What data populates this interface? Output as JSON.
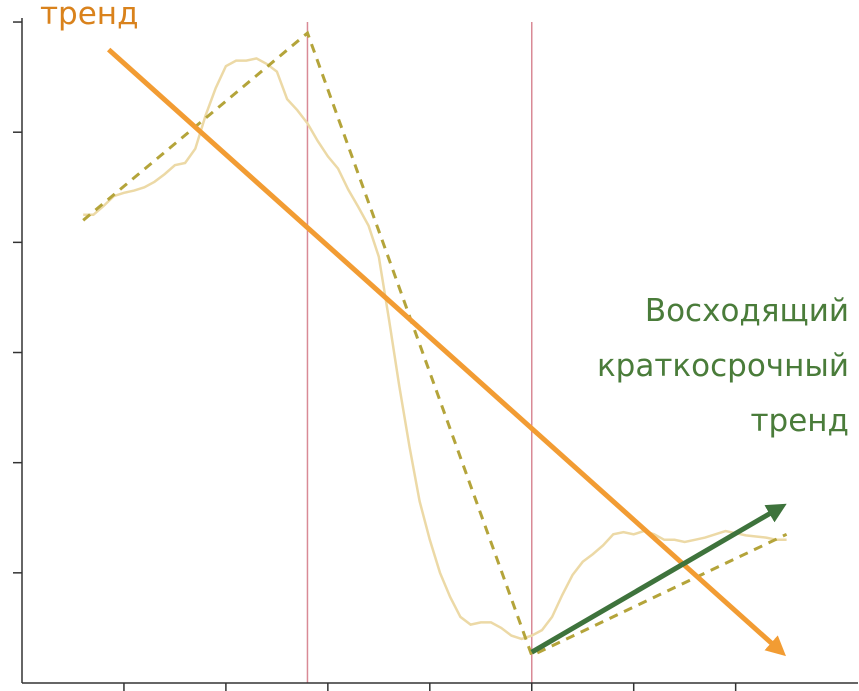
{
  "chart_data": {
    "type": "line",
    "title": "",
    "xlabel": "",
    "ylabel": "",
    "xlim": [
      0,
      8.2
    ],
    "ylim": [
      0,
      6.2
    ],
    "grid": false,
    "annotations": {
      "left_trend_label": "тренд",
      "right_trend_label": [
        "Восходящий",
        "краткосрочный",
        "тренд"
      ]
    },
    "colors": {
      "price": "#ecd9a6",
      "segments": "#b4a43a",
      "long_trend": "#f29c33",
      "short_trend": "#3e733c",
      "dividers": "#d98a96",
      "axis": "#333333",
      "left_label": "#d9821c",
      "right_label": "#4a7c3a"
    },
    "price_series": {
      "name": "",
      "x": [
        0.6,
        0.7,
        0.8,
        0.9,
        1.0,
        1.1,
        1.2,
        1.3,
        1.4,
        1.5,
        1.6,
        1.7,
        1.8,
        1.9,
        2.0,
        2.1,
        2.2,
        2.3,
        2.4,
        2.5,
        2.6,
        2.7,
        2.8,
        2.9,
        3.0,
        3.1,
        3.2,
        3.3,
        3.4,
        3.5,
        3.6,
        3.7,
        3.8,
        3.9,
        4.0,
        4.1,
        4.2,
        4.3,
        4.4,
        4.5,
        4.6,
        4.7,
        4.8,
        4.9,
        5.0,
        5.1,
        5.2,
        5.3,
        5.4,
        5.5,
        5.6,
        5.7,
        5.8,
        5.9,
        6.0,
        6.1,
        6.2,
        6.3,
        6.4,
        6.5,
        6.6,
        6.7,
        6.8,
        6.9,
        7.0,
        7.1,
        7.2,
        7.3,
        7.4,
        7.5
      ],
      "values": [
        4.25,
        4.25,
        4.33,
        4.42,
        4.45,
        4.47,
        4.5,
        4.55,
        4.62,
        4.7,
        4.72,
        4.85,
        5.15,
        5.4,
        5.6,
        5.65,
        5.65,
        5.67,
        5.62,
        5.55,
        5.3,
        5.2,
        5.08,
        4.92,
        4.78,
        4.67,
        4.48,
        4.32,
        4.15,
        3.87,
        3.3,
        2.7,
        2.15,
        1.65,
        1.3,
        1.0,
        0.78,
        0.6,
        0.53,
        0.55,
        0.55,
        0.5,
        0.43,
        0.4,
        0.43,
        0.48,
        0.6,
        0.8,
        0.98,
        1.1,
        1.17,
        1.25,
        1.35,
        1.37,
        1.35,
        1.38,
        1.35,
        1.3,
        1.3,
        1.28,
        1.3,
        1.32,
        1.35,
        1.38,
        1.36,
        1.34,
        1.33,
        1.32,
        1.3,
        1.3
      ]
    },
    "segment_series": {
      "name": "",
      "x": [
        0.6,
        2.8,
        5.0,
        7.5
      ],
      "values": [
        4.2,
        5.9,
        0.25,
        1.35
      ]
    },
    "long_trend": {
      "x": [
        0.85,
        7.45
      ],
      "y": [
        5.75,
        0.28
      ]
    },
    "short_trend": {
      "x": [
        5.0,
        7.45
      ],
      "y": [
        0.28,
        1.6
      ]
    },
    "dividers_x": [
      2.8,
      5.0
    ]
  }
}
